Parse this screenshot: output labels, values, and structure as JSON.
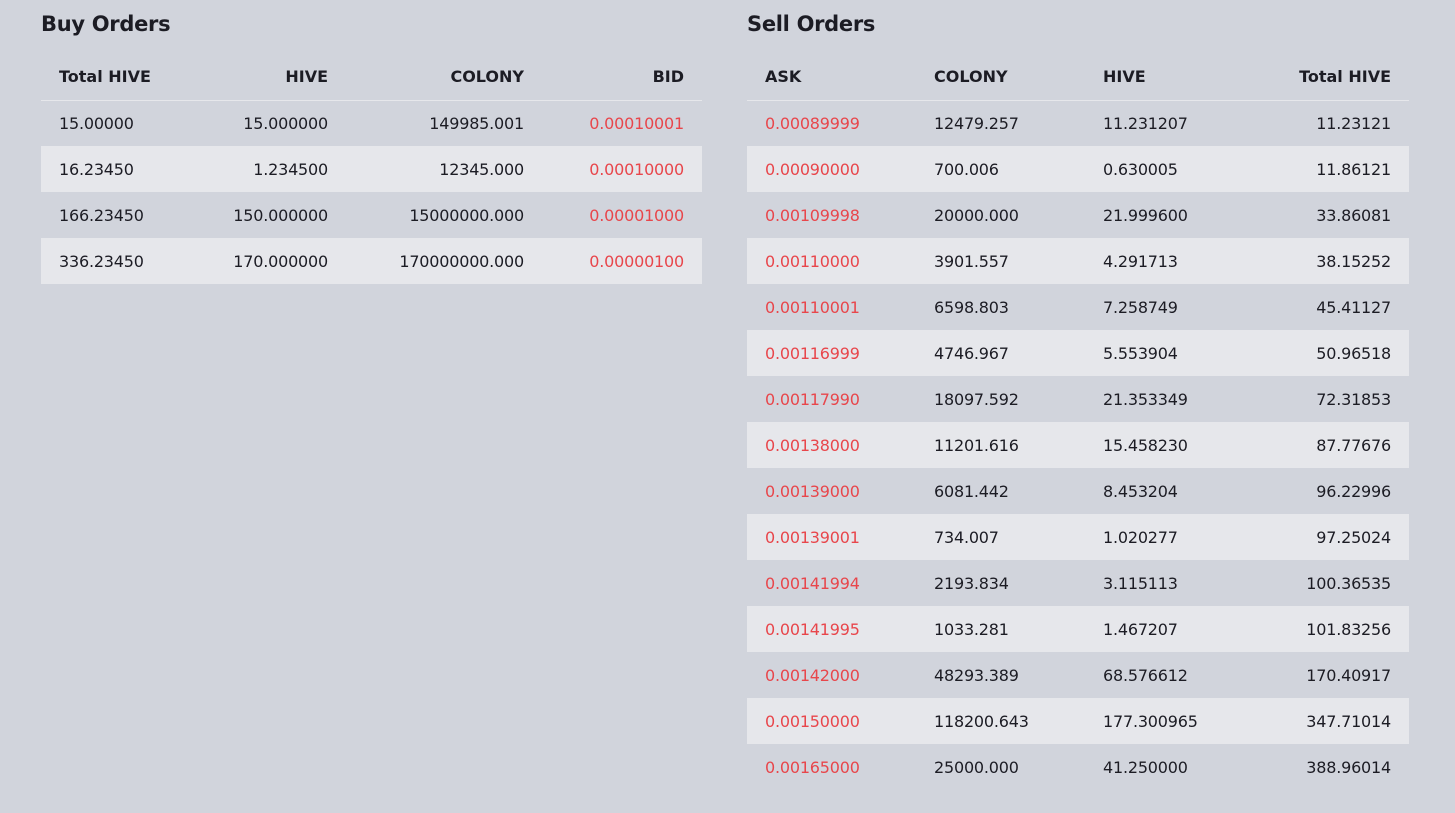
{
  "buy": {
    "title": "Buy Orders",
    "headers": [
      "Total HIVE",
      "HIVE",
      "COLONY",
      "BID"
    ],
    "rows": [
      [
        "15.00000",
        "15.000000",
        "149985.001",
        "0.00010001"
      ],
      [
        "16.23450",
        "1.234500",
        "12345.000",
        "0.00010000"
      ],
      [
        "166.23450",
        "150.000000",
        "15000000.000",
        "0.00001000"
      ],
      [
        "336.23450",
        "170.000000",
        "170000000.000",
        "0.00000100"
      ]
    ]
  },
  "sell": {
    "title": "Sell Orders",
    "headers": [
      "ASK",
      "COLONY",
      "HIVE",
      "Total HIVE"
    ],
    "rows": [
      [
        "0.00089999",
        "12479.257",
        "11.231207",
        "11.23121"
      ],
      [
        "0.00090000",
        "700.006",
        "0.630005",
        "11.86121"
      ],
      [
        "0.00109998",
        "20000.000",
        "21.999600",
        "33.86081"
      ],
      [
        "0.00110000",
        "3901.557",
        "4.291713",
        "38.15252"
      ],
      [
        "0.00110001",
        "6598.803",
        "7.258749",
        "45.41127"
      ],
      [
        "0.00116999",
        "4746.967",
        "5.553904",
        "50.96518"
      ],
      [
        "0.00117990",
        "18097.592",
        "21.353349",
        "72.31853"
      ],
      [
        "0.00138000",
        "11201.616",
        "15.458230",
        "87.77676"
      ],
      [
        "0.00139000",
        "6081.442",
        "8.453204",
        "96.22996"
      ],
      [
        "0.00139001",
        "734.007",
        "1.020277",
        "97.25024"
      ],
      [
        "0.00141994",
        "2193.834",
        "3.115113",
        "100.36535"
      ],
      [
        "0.00141995",
        "1033.281",
        "1.467207",
        "101.83256"
      ],
      [
        "0.00142000",
        "48293.389",
        "68.576612",
        "170.40917"
      ],
      [
        "0.00150000",
        "118200.643",
        "177.300965",
        "347.71014"
      ],
      [
        "0.00165000",
        "25000.000",
        "41.250000",
        "388.96014"
      ]
    ]
  },
  "colors": {
    "background": "#d1d4dc",
    "row_stripe": "#e6e7eb",
    "price": "#e8464b",
    "text": "#1c1c24"
  }
}
